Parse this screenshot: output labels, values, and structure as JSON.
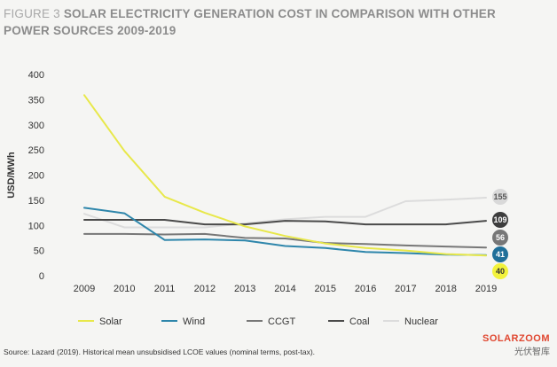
{
  "title_prefix": "FIGURE 3",
  "title_text": "SOLAR ELECTRICITY GENERATION COST IN COMPARISON WITH OTHER POWER SOURCES 2009-2019",
  "source": "Source: Lazard (2019). Historical mean unsubsidised LCOE values (nominal terms, post-tax).",
  "watermark": {
    "brand": "SOLARZOOM",
    "subtitle": "光伏智库"
  },
  "chart_data": {
    "type": "line",
    "ylabel": "USD/MWh",
    "xlabel": "",
    "ylim": [
      0,
      400
    ],
    "yticks": [
      0,
      50,
      100,
      150,
      200,
      250,
      300,
      350,
      400
    ],
    "x": [
      "2009",
      "2010",
      "2011",
      "2012",
      "2013",
      "2014",
      "2015",
      "2016",
      "2017",
      "2018",
      "2019"
    ],
    "grid": false,
    "legend_position": "bottom",
    "series": [
      {
        "name": "Solar",
        "color": "#e8e84a",
        "values": [
          359,
          248,
          157,
          125,
          98,
          79,
          64,
          55,
          50,
          43,
          40
        ]
      },
      {
        "name": "Wind",
        "color": "#2e86ab",
        "values": [
          135,
          124,
          71,
          72,
          70,
          59,
          55,
          47,
          45,
          42,
          41
        ]
      },
      {
        "name": "CCGT",
        "color": "#777777",
        "values": [
          83,
          83,
          82,
          83,
          75,
          74,
          65,
          63,
          60,
          58,
          56
        ]
      },
      {
        "name": "Coal",
        "color": "#4a4a4a",
        "values": [
          111,
          111,
          111,
          102,
          102,
          109,
          108,
          102,
          102,
          102,
          109
        ]
      },
      {
        "name": "Nuclear",
        "color": "#dcdcdc",
        "values": [
          123,
          96,
          96,
          96,
          104,
          112,
          117,
          117,
          148,
          151,
          155
        ]
      }
    ],
    "end_labels": [
      {
        "series": "Nuclear",
        "text": "155",
        "value": 155,
        "fill": "#d9d9d9",
        "text_color": "#555555"
      },
      {
        "series": "Coal",
        "text": "109",
        "value": 109,
        "fill": "#3d3d3d",
        "text_color": "#ffffff"
      },
      {
        "series": "CCGT",
        "text": "56",
        "value": 56,
        "fill": "#777777",
        "text_color": "#ffffff"
      },
      {
        "series": "Wind",
        "text": "41",
        "value": 41,
        "fill": "#1f6f99",
        "text_color": "#ffffff"
      },
      {
        "series": "Solar",
        "text": "40",
        "value": 40,
        "fill": "#f2f23c",
        "text_color": "#333333"
      }
    ]
  }
}
